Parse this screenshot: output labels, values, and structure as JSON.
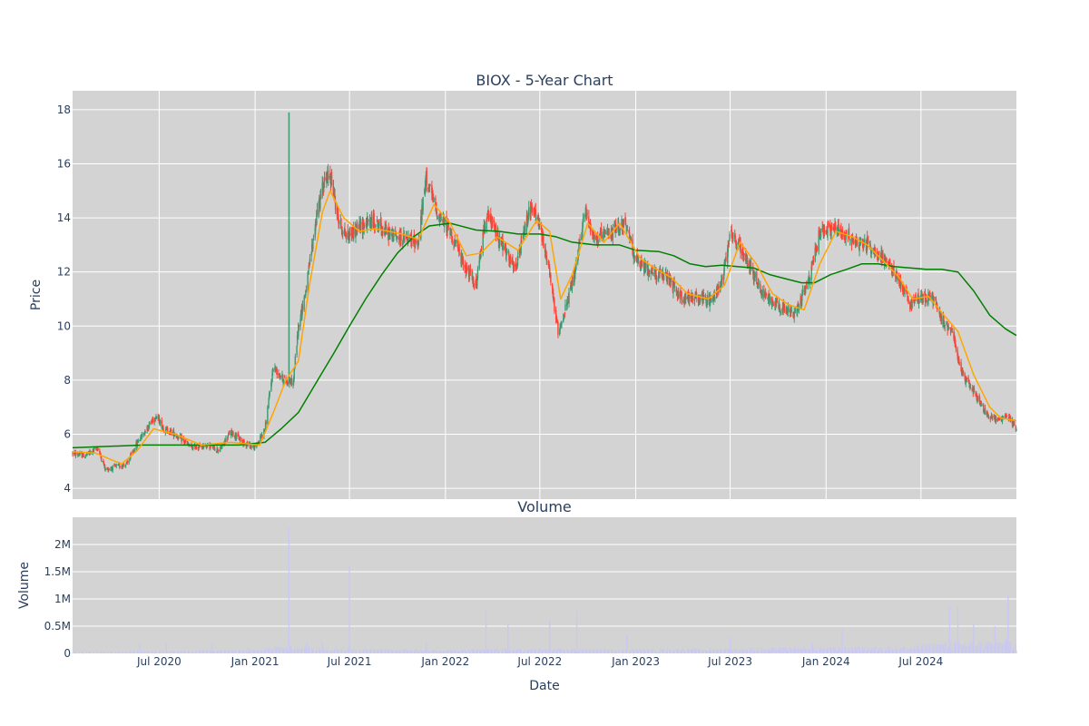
{
  "chart_data": [
    {
      "type": "candlestick",
      "title": "BIOX - 5-Year Chart",
      "ylabel": "Price",
      "ylim": [
        3.6,
        18.7
      ],
      "yticks": [
        "4",
        "6",
        "8",
        "10",
        "12",
        "14",
        "16",
        "18"
      ],
      "x_range": [
        "2020-01-17",
        "2024-12-31"
      ],
      "xticks": [
        {
          "date": "2020-07-01",
          "label": "Jul 2020"
        },
        {
          "date": "2021-01-01",
          "label": "Jan 2021"
        },
        {
          "date": "2021-07-01",
          "label": "Jul 2021"
        },
        {
          "date": "2022-01-01",
          "label": "Jan 2022"
        },
        {
          "date": "2022-07-01",
          "label": "Jul 2022"
        },
        {
          "date": "2023-01-01",
          "label": "Jan 2023"
        },
        {
          "date": "2023-07-01",
          "label": "Jul 2023"
        },
        {
          "date": "2024-01-01",
          "label": "Jan 2024"
        },
        {
          "date": "2024-07-01",
          "label": "Jul 2024"
        }
      ],
      "grid": true,
      "colors": {
        "plot_bg": "#d3d3d3",
        "grid": "#ffffff",
        "up": "#3d9970",
        "down": "#ff4136",
        "ma_short": "#ffa500",
        "ma_long": "#008000"
      },
      "price_path": [
        [
          "2020-01-17",
          5.3
        ],
        [
          "2020-02-10",
          5.2
        ],
        [
          "2020-03-05",
          5.5
        ],
        [
          "2020-03-20",
          4.7
        ],
        [
          "2020-04-10",
          4.8
        ],
        [
          "2020-05-01",
          4.9
        ],
        [
          "2020-05-20",
          5.7
        ],
        [
          "2020-06-10",
          6.3
        ],
        [
          "2020-06-25",
          6.7
        ],
        [
          "2020-07-10",
          6.2
        ],
        [
          "2020-08-01",
          6.0
        ],
        [
          "2020-09-01",
          5.5
        ],
        [
          "2020-10-01",
          5.6
        ],
        [
          "2020-10-25",
          5.4
        ],
        [
          "2020-11-15",
          6.1
        ],
        [
          "2020-12-10",
          5.7
        ],
        [
          "2021-01-01",
          5.5
        ],
        [
          "2021-01-20",
          6.2
        ],
        [
          "2021-02-05",
          8.5
        ],
        [
          "2021-02-25",
          8.0
        ],
        [
          "2021-03-15",
          7.9
        ],
        [
          "2021-03-25",
          10.0
        ],
        [
          "2021-04-10",
          11.5
        ],
        [
          "2021-04-25",
          13.6
        ],
        [
          "2021-05-10",
          15.2
        ],
        [
          "2021-05-25",
          15.6
        ],
        [
          "2021-06-10",
          13.9
        ],
        [
          "2021-06-25",
          13.3
        ],
        [
          "2021-07-15",
          13.6
        ],
        [
          "2021-08-15",
          13.9
        ],
        [
          "2021-09-15",
          13.4
        ],
        [
          "2021-10-20",
          13.2
        ],
        [
          "2021-11-10",
          13.1
        ],
        [
          "2021-11-25",
          15.5
        ],
        [
          "2021-12-15",
          14.2
        ],
        [
          "2022-01-10",
          13.5
        ],
        [
          "2022-02-05",
          12.3
        ],
        [
          "2022-03-01",
          11.5
        ],
        [
          "2022-03-20",
          14.2
        ],
        [
          "2022-04-20",
          13.0
        ],
        [
          "2022-05-15",
          12.0
        ],
        [
          "2022-06-10",
          14.3
        ],
        [
          "2022-06-25",
          14.1
        ],
        [
          "2022-07-15",
          12.5
        ],
        [
          "2022-08-05",
          9.8
        ],
        [
          "2022-08-25",
          11.0
        ],
        [
          "2022-09-10",
          12.3
        ],
        [
          "2022-09-25",
          14.3
        ],
        [
          "2022-10-15",
          13.2
        ],
        [
          "2022-11-10",
          13.4
        ],
        [
          "2022-12-10",
          13.8
        ],
        [
          "2023-01-05",
          12.3
        ],
        [
          "2023-02-01",
          12.0
        ],
        [
          "2023-03-01",
          11.8
        ],
        [
          "2023-04-01",
          11.0
        ],
        [
          "2023-05-01",
          11.1
        ],
        [
          "2023-05-25",
          10.9
        ],
        [
          "2023-06-15",
          11.7
        ],
        [
          "2023-07-01",
          13.5
        ],
        [
          "2023-08-01",
          12.5
        ],
        [
          "2023-09-01",
          11.2
        ],
        [
          "2023-10-01",
          10.8
        ],
        [
          "2023-11-01",
          10.4
        ],
        [
          "2023-12-01",
          11.8
        ],
        [
          "2023-12-20",
          13.5
        ],
        [
          "2024-01-20",
          13.6
        ],
        [
          "2024-02-20",
          13.2
        ],
        [
          "2024-03-20",
          13.0
        ],
        [
          "2024-04-20",
          12.5
        ],
        [
          "2024-05-20",
          11.7
        ],
        [
          "2024-06-10",
          10.8
        ],
        [
          "2024-07-01",
          11.1
        ],
        [
          "2024-07-25",
          11.0
        ],
        [
          "2024-08-10",
          10.2
        ],
        [
          "2024-09-01",
          9.8
        ],
        [
          "2024-09-15",
          8.3
        ],
        [
          "2024-10-10",
          7.6
        ],
        [
          "2024-11-01",
          6.8
        ],
        [
          "2024-11-25",
          6.5
        ],
        [
          "2024-12-15",
          6.7
        ],
        [
          "2024-12-31",
          6.2
        ]
      ],
      "spikes": [
        [
          "2021-03-07",
          17.9,
          7.9
        ]
      ],
      "ma_short": [
        [
          "2020-01-17",
          5.35
        ],
        [
          "2020-03-01",
          5.3
        ],
        [
          "2020-04-20",
          4.9
        ],
        [
          "2020-05-20",
          5.4
        ],
        [
          "2020-06-20",
          6.2
        ],
        [
          "2020-08-01",
          6.0
        ],
        [
          "2020-09-20",
          5.6
        ],
        [
          "2020-11-15",
          5.7
        ],
        [
          "2021-01-10",
          5.6
        ],
        [
          "2021-02-05",
          6.8
        ],
        [
          "2021-03-01",
          8.0
        ],
        [
          "2021-03-25",
          8.7
        ],
        [
          "2021-04-15",
          11.5
        ],
        [
          "2021-05-10",
          14.2
        ],
        [
          "2021-05-25",
          15.0
        ],
        [
          "2021-06-20",
          14.0
        ],
        [
          "2021-07-20",
          13.5
        ],
        [
          "2021-08-20",
          13.6
        ],
        [
          "2021-10-10",
          13.4
        ],
        [
          "2021-11-10",
          13.2
        ],
        [
          "2021-12-10",
          14.5
        ],
        [
          "2022-01-10",
          13.8
        ],
        [
          "2022-02-10",
          12.6
        ],
        [
          "2022-03-10",
          12.7
        ],
        [
          "2022-04-10",
          13.3
        ],
        [
          "2022-05-20",
          12.8
        ],
        [
          "2022-06-25",
          13.9
        ],
        [
          "2022-07-20",
          13.5
        ],
        [
          "2022-08-10",
          11.0
        ],
        [
          "2022-09-01",
          11.9
        ],
        [
          "2022-10-01",
          13.8
        ],
        [
          "2022-11-01",
          13.1
        ],
        [
          "2022-12-01",
          13.8
        ],
        [
          "2023-01-10",
          12.5
        ],
        [
          "2023-02-10",
          12.1
        ],
        [
          "2023-03-10",
          11.8
        ],
        [
          "2023-04-10",
          11.2
        ],
        [
          "2023-05-20",
          11.0
        ],
        [
          "2023-06-20",
          11.5
        ],
        [
          "2023-07-20",
          13.1
        ],
        [
          "2023-08-20",
          12.3
        ],
        [
          "2023-09-20",
          11.2
        ],
        [
          "2023-10-20",
          10.8
        ],
        [
          "2023-11-20",
          10.6
        ],
        [
          "2023-12-20",
          12.3
        ],
        [
          "2024-01-20",
          13.5
        ],
        [
          "2024-02-20",
          13.3
        ],
        [
          "2024-03-20",
          13.0
        ],
        [
          "2024-04-20",
          12.4
        ],
        [
          "2024-05-20",
          11.8
        ],
        [
          "2024-06-15",
          11.0
        ],
        [
          "2024-07-15",
          11.1
        ],
        [
          "2024-08-10",
          10.5
        ],
        [
          "2024-09-10",
          9.8
        ],
        [
          "2024-10-10",
          8.2
        ],
        [
          "2024-11-10",
          7.0
        ],
        [
          "2024-12-01",
          6.6
        ],
        [
          "2024-12-31",
          6.5
        ]
      ],
      "ma_long": [
        [
          "2020-01-17",
          5.5
        ],
        [
          "2020-06-01",
          5.6
        ],
        [
          "2020-12-01",
          5.6
        ],
        [
          "2021-01-20",
          5.7
        ],
        [
          "2021-02-20",
          6.2
        ],
        [
          "2021-03-25",
          6.8
        ],
        [
          "2021-05-01",
          8.0
        ],
        [
          "2021-06-01",
          9.0
        ],
        [
          "2021-07-01",
          10.0
        ],
        [
          "2021-08-01",
          11.0
        ],
        [
          "2021-09-01",
          11.9
        ],
        [
          "2021-10-01",
          12.7
        ],
        [
          "2021-11-01",
          13.3
        ],
        [
          "2021-12-01",
          13.7
        ],
        [
          "2022-01-10",
          13.8
        ],
        [
          "2022-03-01",
          13.55
        ],
        [
          "2022-04-15",
          13.5
        ],
        [
          "2022-05-20",
          13.4
        ],
        [
          "2022-07-01",
          13.4
        ],
        [
          "2022-08-01",
          13.3
        ],
        [
          "2022-09-01",
          13.1
        ],
        [
          "2022-10-15",
          13.0
        ],
        [
          "2022-12-01",
          13.0
        ],
        [
          "2023-01-01",
          12.8
        ],
        [
          "2023-02-15",
          12.75
        ],
        [
          "2023-03-15",
          12.6
        ],
        [
          "2023-04-15",
          12.3
        ],
        [
          "2023-05-15",
          12.2
        ],
        [
          "2023-06-15",
          12.25
        ],
        [
          "2023-07-15",
          12.2
        ],
        [
          "2023-08-15",
          12.15
        ],
        [
          "2023-09-15",
          11.9
        ],
        [
          "2023-10-15",
          11.75
        ],
        [
          "2023-11-15",
          11.6
        ],
        [
          "2023-12-10",
          11.6
        ],
        [
          "2024-01-10",
          11.9
        ],
        [
          "2024-02-10",
          12.1
        ],
        [
          "2024-03-10",
          12.3
        ],
        [
          "2024-04-10",
          12.3
        ],
        [
          "2024-05-10",
          12.2
        ],
        [
          "2024-06-10",
          12.15
        ],
        [
          "2024-07-10",
          12.1
        ],
        [
          "2024-08-10",
          12.1
        ],
        [
          "2024-09-10",
          12.0
        ],
        [
          "2024-10-10",
          11.3
        ],
        [
          "2024-11-10",
          10.4
        ],
        [
          "2024-12-10",
          9.9
        ],
        [
          "2024-12-31",
          9.65
        ]
      ]
    },
    {
      "type": "bar",
      "title": "Volume",
      "xlabel": "Date",
      "ylabel": "Volume",
      "ylim": [
        0,
        2500000
      ],
      "yticks": [
        {
          "value": 0,
          "label": "0"
        },
        {
          "value": 500000,
          "label": "0.5M"
        },
        {
          "value": 1000000,
          "label": "1M"
        },
        {
          "value": 1500000,
          "label": "1.5M"
        },
        {
          "value": 2000000,
          "label": "2M"
        }
      ],
      "grid": true,
      "colors": {
        "plot_bg": "#d3d3d3",
        "grid": "#ffffff",
        "bar": "#c9c9f2"
      },
      "volume_level": [
        [
          "2020-01-17",
          15000
        ],
        [
          "2020-06-01",
          25000
        ],
        [
          "2021-01-01",
          40000
        ],
        [
          "2021-03-01",
          90000
        ],
        [
          "2021-06-01",
          60000
        ],
        [
          "2022-01-01",
          45000
        ],
        [
          "2022-07-01",
          55000
        ],
        [
          "2023-01-01",
          50000
        ],
        [
          "2023-07-01",
          60000
        ],
        [
          "2024-01-01",
          70000
        ],
        [
          "2024-06-01",
          80000
        ],
        [
          "2024-09-01",
          140000
        ],
        [
          "2024-12-31",
          160000
        ]
      ],
      "volume_spikes": [
        [
          "2020-05-25",
          180000
        ],
        [
          "2020-07-15",
          200000
        ],
        [
          "2020-10-10",
          170000
        ],
        [
          "2020-12-20",
          90000
        ],
        [
          "2021-03-07",
          2300000
        ],
        [
          "2021-04-10",
          200000
        ],
        [
          "2021-05-10",
          220000
        ],
        [
          "2021-07-01",
          1600000
        ],
        [
          "2021-11-25",
          200000
        ],
        [
          "2022-03-20",
          800000
        ],
        [
          "2022-05-01",
          550000
        ],
        [
          "2022-07-20",
          620000
        ],
        [
          "2022-09-10",
          780000
        ],
        [
          "2022-12-15",
          350000
        ],
        [
          "2023-07-01",
          300000
        ],
        [
          "2023-12-05",
          200000
        ],
        [
          "2024-02-01",
          450000
        ],
        [
          "2024-08-25",
          860000
        ],
        [
          "2024-09-10",
          850000
        ],
        [
          "2024-10-10",
          550000
        ],
        [
          "2024-11-20",
          500000
        ],
        [
          "2024-12-15",
          1060000
        ]
      ]
    }
  ]
}
